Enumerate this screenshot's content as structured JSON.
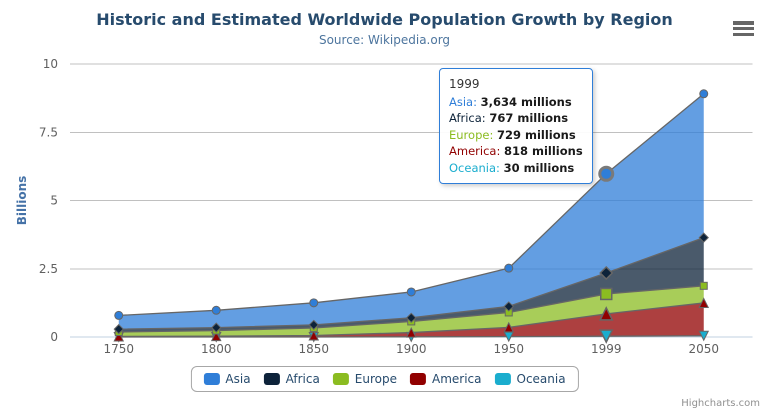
{
  "chart_data": {
    "type": "area",
    "stacking": "normal",
    "title": "Historic and Estimated Worldwide Population Growth by Region",
    "subtitle": "Source: Wikipedia.org",
    "categories": [
      "1750",
      "1800",
      "1850",
      "1900",
      "1950",
      "1999",
      "2050"
    ],
    "unit": "millions",
    "ylabel": "Billions",
    "xlabel": "",
    "ylim": [
      0,
      10
    ],
    "yticks": [
      0,
      2.5,
      5,
      7.5,
      10
    ],
    "grid": true,
    "legend_position": "bottom",
    "hover_category_index": 5,
    "stack_note": "stacked bottom-to-top: Oceania, America, Europe, Africa, Asia",
    "series": [
      {
        "name": "Asia",
        "color": "#2f7ed8",
        "marker": "circle",
        "values": [
          502,
          635,
          809,
          947,
          1402,
          3634,
          5268
        ]
      },
      {
        "name": "Africa",
        "color": "#0d233a",
        "marker": "diamond",
        "values": [
          106,
          107,
          111,
          133,
          221,
          767,
          1766
        ]
      },
      {
        "name": "Europe",
        "color": "#8bbc21",
        "marker": "square",
        "values": [
          163,
          203,
          276,
          408,
          547,
          729,
          628
        ]
      },
      {
        "name": "America",
        "color": "#910000",
        "marker": "triangle",
        "values": [
          18,
          31,
          54,
          156,
          339,
          818,
          1201
        ]
      },
      {
        "name": "Oceania",
        "color": "#1aadce",
        "marker": "triangle-down",
        "values": [
          2,
          2,
          2,
          6,
          13,
          30,
          46
        ]
      }
    ]
  },
  "tooltip": {
    "header": "1999",
    "rows": [
      {
        "name": "Asia",
        "color": "#2f7ed8",
        "value": "3,634 millions"
      },
      {
        "name": "Africa",
        "color": "#0d233a",
        "value": "767 millions"
      },
      {
        "name": "Europe",
        "color": "#8bbc21",
        "value": "729 millions"
      },
      {
        "name": "America",
        "color": "#910000",
        "value": "818 millions"
      },
      {
        "name": "Oceania",
        "color": "#1aadce",
        "value": "30 millions"
      }
    ]
  },
  "credits": "Highcharts.com",
  "icons": {
    "menu": "hamburger-menu-icon"
  },
  "ui_colors": {
    "title": "#274b6d",
    "subtitle": "#4d759e",
    "axis_label": "#606060",
    "y_axis_title": "#4572a7",
    "gridline": "#c0c0c0",
    "x_axis_line": "#c0d0e0",
    "series_outline": "#666666",
    "tooltip_border": "#2f7ed8",
    "legend_border": "#a7a7a7",
    "credits_text": "#909090"
  }
}
